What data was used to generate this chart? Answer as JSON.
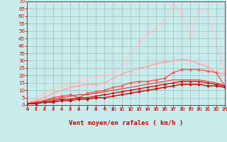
{
  "xlabel": "Vent moyen/en rafales ( km/h )",
  "xlim": [
    0,
    23
  ],
  "ylim": [
    0,
    70
  ],
  "yticks": [
    0,
    5,
    10,
    15,
    20,
    25,
    30,
    35,
    40,
    45,
    50,
    55,
    60,
    65,
    70
  ],
  "xticks": [
    0,
    1,
    2,
    3,
    4,
    5,
    6,
    7,
    8,
    9,
    10,
    11,
    12,
    13,
    14,
    15,
    16,
    17,
    18,
    19,
    20,
    21,
    22,
    23
  ],
  "bg_color": "#c8ecec",
  "grid_color": "#9bbfbf",
  "lines": [
    {
      "x": [
        0,
        1,
        2,
        3,
        4,
        5,
        6,
        7,
        8,
        9,
        10,
        11,
        12,
        13,
        14,
        15,
        16,
        17,
        18,
        19,
        20,
        21,
        22,
        23
      ],
      "y": [
        1,
        1,
        2,
        2,
        3,
        3,
        4,
        4,
        5,
        5,
        6,
        7,
        8,
        9,
        10,
        11,
        12,
        13,
        14,
        14,
        14,
        13,
        13,
        12
      ],
      "color": "#cc0000",
      "lw": 1.0,
      "marker": "D",
      "ms": 1.8,
      "zorder": 6
    },
    {
      "x": [
        0,
        1,
        2,
        3,
        4,
        5,
        6,
        7,
        8,
        9,
        10,
        11,
        12,
        13,
        14,
        15,
        16,
        17,
        18,
        19,
        20,
        21,
        22,
        23
      ],
      "y": [
        1,
        1,
        2,
        3,
        4,
        4,
        5,
        5,
        6,
        7,
        8,
        9,
        10,
        11,
        12,
        13,
        14,
        15,
        16,
        16,
        16,
        15,
        14,
        13
      ],
      "color": "#dd1111",
      "lw": 1.0,
      "marker": "D",
      "ms": 1.8,
      "zorder": 5
    },
    {
      "x": [
        0,
        1,
        2,
        3,
        4,
        5,
        6,
        7,
        8,
        9,
        10,
        11,
        12,
        13,
        14,
        15,
        16,
        17,
        18,
        19,
        20,
        21,
        22,
        23
      ],
      "y": [
        1,
        2,
        3,
        4,
        5,
        6,
        7,
        7,
        8,
        9,
        10,
        11,
        12,
        13,
        14,
        15,
        16,
        17,
        17,
        17,
        17,
        16,
        15,
        13
      ],
      "color": "#ee3333",
      "lw": 0.8,
      "marker": null,
      "ms": 0,
      "zorder": 4
    },
    {
      "x": [
        0,
        1,
        2,
        3,
        4,
        5,
        6,
        7,
        8,
        9,
        10,
        11,
        12,
        13,
        14,
        15,
        16,
        17,
        18,
        19,
        20,
        21,
        22,
        23
      ],
      "y": [
        1,
        2,
        3,
        5,
        6,
        7,
        5,
        8,
        9,
        10,
        12,
        13,
        15,
        16,
        16,
        17,
        18,
        22,
        24,
        24,
        24,
        23,
        22,
        13
      ],
      "color": "#ff5555",
      "lw": 1.0,
      "marker": "D",
      "ms": 2.0,
      "zorder": 3
    },
    {
      "x": [
        0,
        1,
        2,
        3,
        4,
        5,
        6,
        7,
        8,
        9,
        10,
        11,
        12,
        13,
        14,
        15,
        16,
        17,
        18,
        19,
        20,
        21,
        22,
        23
      ],
      "y": [
        2,
        3,
        5,
        8,
        10,
        12,
        13,
        14,
        14,
        15,
        18,
        21,
        23,
        25,
        26,
        28,
        29,
        30,
        31,
        30,
        28,
        26,
        22,
        21
      ],
      "color": "#ffaaaa",
      "lw": 1.2,
      "marker": "D",
      "ms": 2.0,
      "zorder": 2
    },
    {
      "x": [
        0,
        1,
        2,
        3,
        4,
        5,
        6,
        7,
        8,
        9,
        10,
        11,
        12,
        13,
        14,
        15,
        16,
        17,
        18,
        19,
        20,
        21,
        22,
        23
      ],
      "y": [
        3,
        5,
        8,
        11,
        13,
        14,
        16,
        18,
        19,
        20,
        22,
        27,
        35,
        42,
        48,
        52,
        57,
        68,
        62,
        45,
        65,
        64,
        42,
        22
      ],
      "color": "#ffcccc",
      "lw": 1.2,
      "marker": "D",
      "ms": 2.0,
      "zorder": 1
    }
  ],
  "tick_color": "#cc0000",
  "xlabel_color": "#cc0000",
  "tick_fontsize": 5.0,
  "xlabel_fontsize": 6.5
}
